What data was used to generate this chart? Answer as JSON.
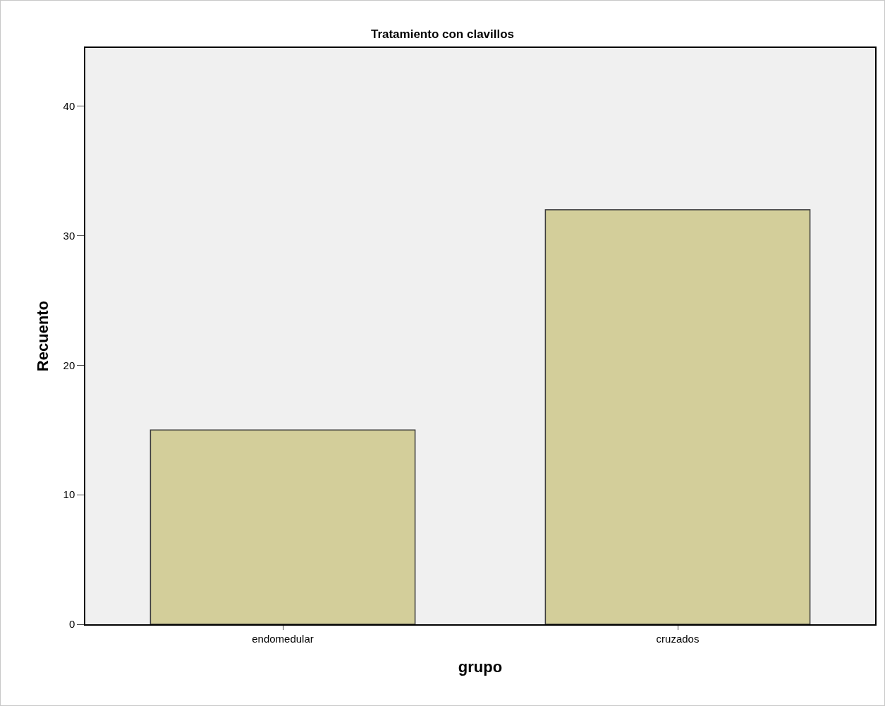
{
  "chart_data": {
    "type": "bar",
    "title": "Tratamiento con clavillos",
    "xlabel": "grupo",
    "ylabel": "Recuento",
    "categories": [
      "endomedular",
      "cruzados"
    ],
    "values": [
      15,
      32
    ],
    "color": "#d3ce9a",
    "ylim": [
      0,
      44.5
    ],
    "yticks": [
      0,
      10,
      20,
      30,
      40
    ],
    "grid": false
  }
}
